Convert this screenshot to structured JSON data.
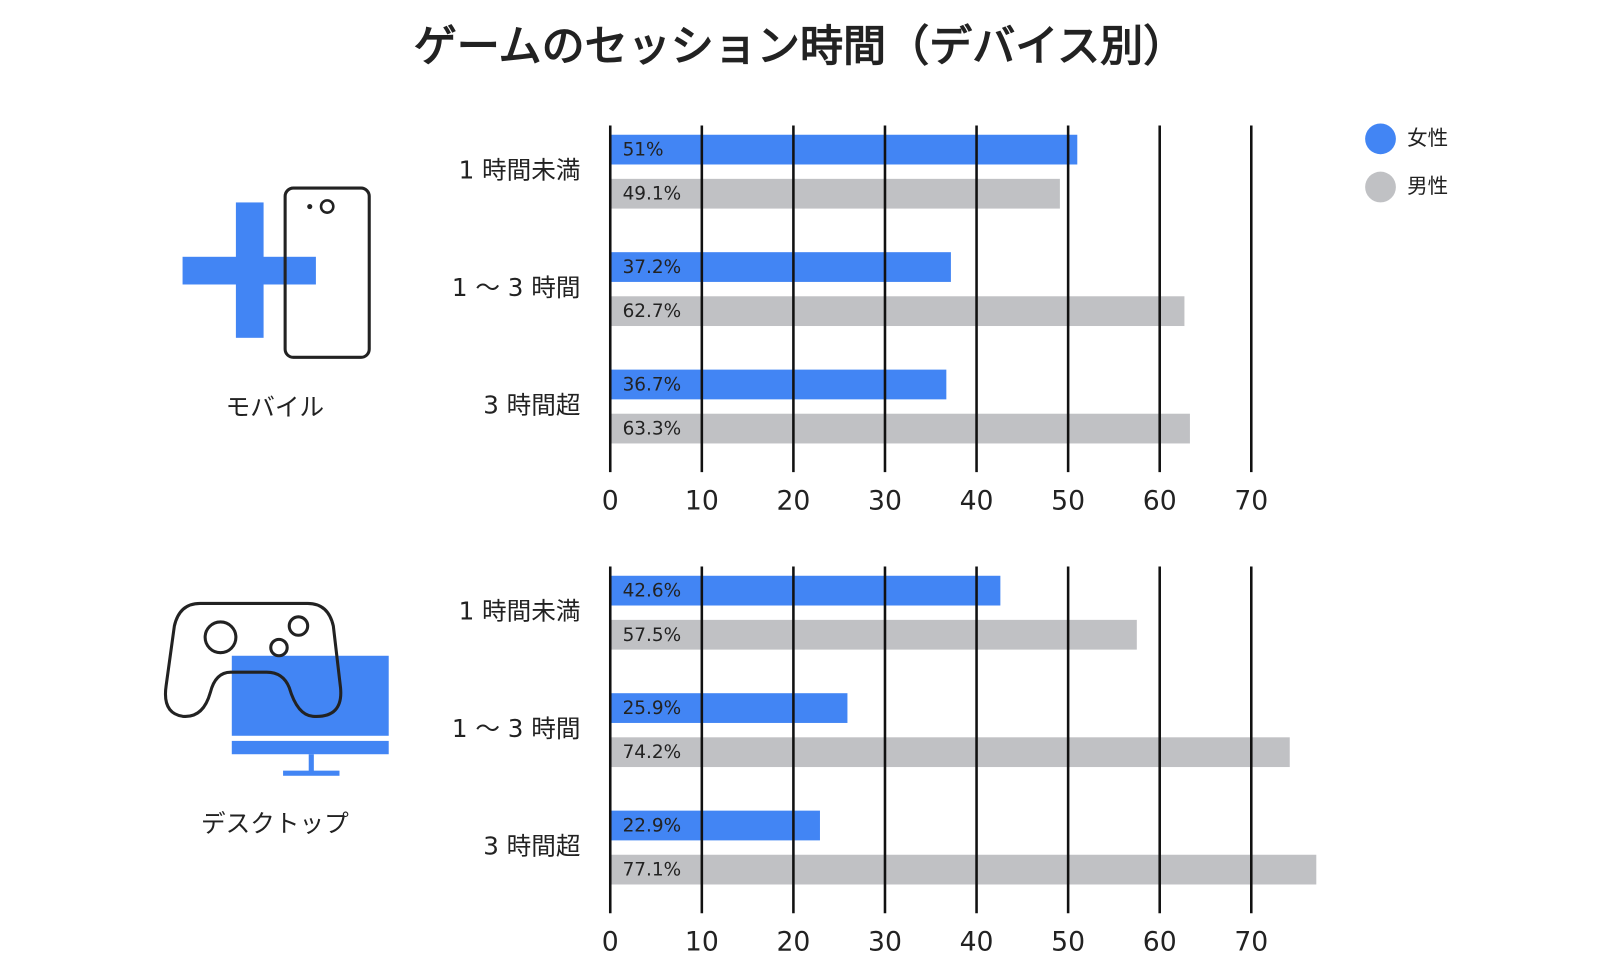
{
  "title": "ゲームのセッション時間（デバイス別）",
  "chart_data": [
    {
      "type": "bar",
      "orientation": "horizontal",
      "device_label": "モバイル",
      "categories": [
        "1 時間未満",
        "1 〜 3 時間",
        "3 時間超"
      ],
      "series": [
        {
          "name": "女性",
          "color": "#4285f4",
          "values": [
            51,
            37.2,
            36.7
          ],
          "value_labels": [
            "51%",
            "37.2%",
            "36.7%"
          ]
        },
        {
          "name": "男性",
          "color": "#c0c1c4",
          "values": [
            49.1,
            62.7,
            63.3
          ],
          "value_labels": [
            "49.1%",
            "62.7%",
            "63.3%"
          ]
        }
      ],
      "xlim": [
        0,
        70
      ],
      "xticks": [
        0,
        10,
        20,
        30,
        40,
        50,
        60,
        70
      ],
      "grid": true,
      "legend": "top-right"
    },
    {
      "type": "bar",
      "orientation": "horizontal",
      "device_label": "デスクトップ",
      "categories": [
        "1 時間未満",
        "1 〜 3 時間",
        "3 時間超"
      ],
      "series": [
        {
          "name": "女性",
          "color": "#4285f4",
          "values": [
            42.6,
            25.9,
            22.9
          ],
          "value_labels": [
            "42.6%",
            "25.9%",
            "22.9%"
          ]
        },
        {
          "name": "男性",
          "color": "#c0c1c4",
          "values": [
            57.5,
            74.2,
            77.1
          ],
          "value_labels": [
            "57.5%",
            "74.2%",
            "77.1%"
          ]
        }
      ],
      "xlim": [
        0,
        70
      ],
      "xticks": [
        0,
        10,
        20,
        30,
        40,
        50,
        60,
        70
      ],
      "grid": true
    }
  ]
}
